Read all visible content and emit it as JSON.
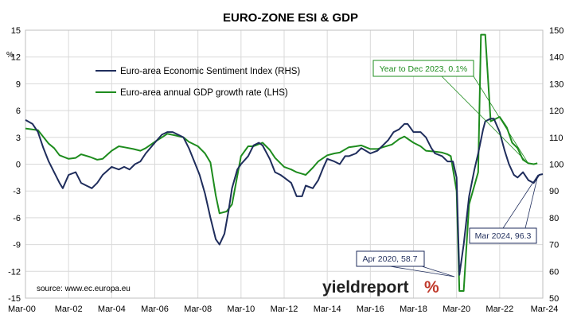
{
  "chart_data": {
    "type": "line",
    "title": "EURO-ZONE ESI & GDP",
    "left_axis": {
      "unit": "%",
      "min": -15,
      "max": 15,
      "ticks": [
        -15,
        -12,
        -9,
        -6,
        -3,
        0,
        3,
        6,
        9,
        12,
        15
      ]
    },
    "right_axis": {
      "min": 50,
      "max": 150,
      "ticks": [
        50,
        60,
        70,
        80,
        90,
        100,
        110,
        120,
        130,
        140,
        150
      ]
    },
    "x_tick_labels": [
      "Mar-00",
      "Mar-02",
      "Mar-04",
      "Mar-06",
      "Mar-08",
      "Mar-10",
      "Mar-12",
      "Mar-14",
      "Mar-16",
      "Mar-18",
      "Mar-20",
      "Mar-22",
      "Mar-24"
    ],
    "x_range": [
      2000.17,
      2024.17
    ],
    "grid": "vertical-and-horizontal",
    "legend_placement": "top-left",
    "series": [
      {
        "name": "Euro-area Economic Sentiment Index (RHS)",
        "axis": "right",
        "color": "#1f2d5c",
        "x": [
          2000.17,
          2000.5,
          2000.75,
          2001.0,
          2001.25,
          2001.5,
          2001.75,
          2001.9,
          2002.17,
          2002.5,
          2002.75,
          2003.0,
          2003.25,
          2003.5,
          2003.75,
          2004.17,
          2004.5,
          2004.75,
          2005.0,
          2005.25,
          2005.5,
          2005.75,
          2006.17,
          2006.5,
          2006.75,
          2007.0,
          2007.25,
          2007.5,
          2007.75,
          2008.0,
          2008.25,
          2008.5,
          2008.75,
          2009.0,
          2009.17,
          2009.4,
          2009.6,
          2009.75,
          2010.0,
          2010.17,
          2010.5,
          2010.75,
          2011.0,
          2011.17,
          2011.5,
          2011.75,
          2012.0,
          2012.17,
          2012.5,
          2012.75,
          2013.0,
          2013.17,
          2013.5,
          2013.75,
          2014.0,
          2014.17,
          2014.5,
          2014.75,
          2015.0,
          2015.17,
          2015.5,
          2015.75,
          2016.17,
          2016.5,
          2016.75,
          2017.0,
          2017.25,
          2017.5,
          2017.75,
          2017.9,
          2018.17,
          2018.5,
          2018.75,
          2019.0,
          2019.17,
          2019.5,
          2019.75,
          2020.0,
          2020.17,
          2020.3,
          2020.5,
          2020.75,
          2021.0,
          2021.17,
          2021.4,
          2021.5,
          2021.75,
          2021.9,
          2022.17,
          2022.4,
          2022.6,
          2022.83,
          2023.0,
          2023.25,
          2023.5,
          2023.75,
          2024.0,
          2024.17
        ],
        "y": [
          116.5,
          115,
          112,
          106,
          101,
          97,
          93,
          91,
          96,
          97,
          93,
          92,
          91,
          93,
          96,
          99,
          98,
          99,
          98,
          100,
          101,
          104,
          108,
          111,
          112,
          112,
          111,
          110,
          106,
          101,
          96,
          89,
          80,
          72,
          70,
          74,
          83,
          91,
          98,
          100,
          103,
          107,
          108,
          107,
          102,
          97,
          96,
          95,
          93,
          88,
          88,
          92,
          91,
          94,
          99,
          102,
          101,
          100,
          103,
          103,
          104,
          106,
          104,
          105,
          107,
          109,
          112,
          113,
          115,
          115,
          112,
          112,
          110,
          106,
          104,
          103,
          101,
          101,
          95,
          58.7,
          70,
          88,
          98,
          104,
          113,
          116,
          117,
          117,
          112,
          105,
          100,
          96,
          95,
          97,
          94,
          93,
          96,
          96.3
        ]
      },
      {
        "name": "Euro-area annual GDP growth rate (LHS)",
        "axis": "left",
        "color": "#1e8c1e",
        "x": [
          2000.17,
          2000.75,
          2001.25,
          2001.5,
          2001.75,
          2002.17,
          2002.5,
          2002.75,
          2003.17,
          2003.5,
          2003.75,
          2004.17,
          2004.5,
          2004.75,
          2005.17,
          2005.5,
          2005.75,
          2006.17,
          2006.5,
          2006.75,
          2007.17,
          2007.5,
          2007.75,
          2008.17,
          2008.5,
          2008.75,
          2009.0,
          2009.17,
          2009.5,
          2009.75,
          2010.17,
          2010.5,
          2010.75,
          2011.17,
          2011.5,
          2011.75,
          2012.17,
          2012.5,
          2012.75,
          2013.17,
          2013.5,
          2013.75,
          2014.17,
          2014.5,
          2014.75,
          2015.17,
          2015.5,
          2015.75,
          2016.17,
          2016.5,
          2016.75,
          2017.17,
          2017.5,
          2017.75,
          2018.17,
          2018.5,
          2018.75,
          2019.17,
          2019.5,
          2019.75,
          2019.9,
          2020.17,
          2020.3,
          2020.5,
          2020.75,
          2021.17,
          2021.3,
          2021.5,
          2021.75,
          2022.17,
          2022.5,
          2022.75,
          2023.0,
          2023.25,
          2023.5,
          2023.75,
          2023.92
        ],
        "y": [
          4,
          3.8,
          2.3,
          1.8,
          1.0,
          0.6,
          0.7,
          1.1,
          0.8,
          0.5,
          0.6,
          1.5,
          2.0,
          1.9,
          1.7,
          1.5,
          1.8,
          2.5,
          3.0,
          3.4,
          3.2,
          3.0,
          2.5,
          2.0,
          1.2,
          0.2,
          -3.5,
          -5.5,
          -5.3,
          -4.5,
          0.9,
          2.0,
          2.0,
          2.4,
          1.6,
          0.7,
          -0.3,
          -0.6,
          -0.9,
          -1.2,
          -0.4,
          0.3,
          1.0,
          1.2,
          1.3,
          1.9,
          2.0,
          2.1,
          1.7,
          1.7,
          1.9,
          2.2,
          2.8,
          3.1,
          2.4,
          2.0,
          1.5,
          1.4,
          1.3,
          1.1,
          0.9,
          -3.0,
          -14.2,
          -14.2,
          -4.5,
          -0.9,
          14.5,
          14.5,
          4.8,
          5.3,
          4.1,
          2.4,
          1.8,
          0.5,
          0.1,
          0.0,
          0.1
        ]
      }
    ],
    "annotations": [
      {
        "text": "Year to Dec 2023, 0.1%",
        "color": "#1e8c1e"
      },
      {
        "text": "Apr 2020, 58.7",
        "color": "#1f2d5c"
      },
      {
        "text": "Mar 2024, 96.3",
        "color": "#1f2d5c"
      }
    ],
    "source": "source: www.ec.europa.eu",
    "brand": {
      "text": "yieldreport",
      "symbol": "%",
      "color": "#c0392b"
    }
  }
}
